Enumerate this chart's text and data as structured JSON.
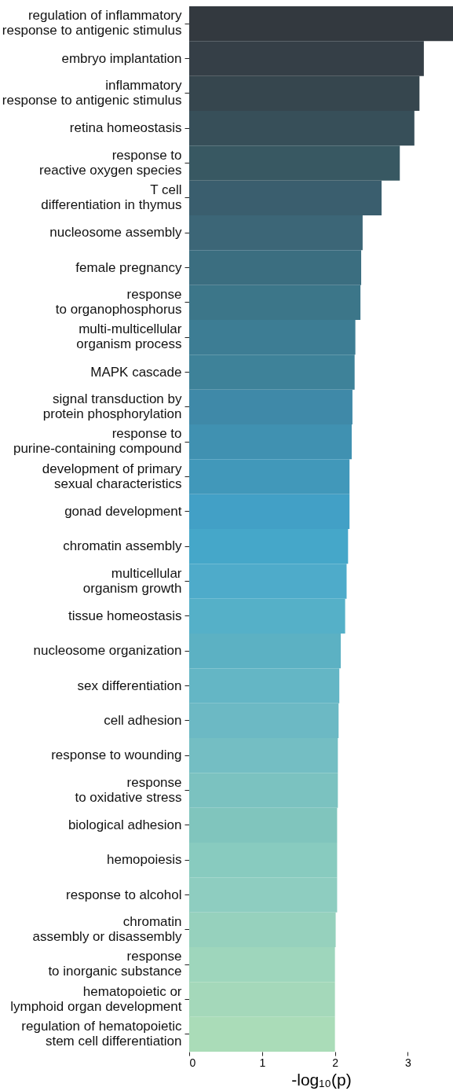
{
  "chart_data": {
    "type": "bar",
    "orientation": "horizontal",
    "xlabel": "-log₁₀(p)",
    "categories": [
      "regulation of inflammatory\nresponse to antigenic stimulus",
      "embryo implantation",
      "inflammatory\nresponse to antigenic stimulus",
      "retina homeostasis",
      "response to\nreactive oxygen species",
      "T cell\ndifferentiation in thymus",
      "nucleosome assembly",
      "female pregnancy",
      "response\nto organophosphorus",
      "multi-multicellular\norganism process",
      "MAPK cascade",
      "signal transduction by\nprotein phosphorylation",
      "response to\npurine-containing compound",
      "development of primary\nsexual characteristics",
      "gonad development",
      "chromatin assembly",
      "multicellular\norganism growth",
      "tissue homeostasis",
      "nucleosome organization",
      "sex differentiation",
      "cell adhesion",
      "response to wounding",
      "response\nto oxidative stress",
      "biological adhesion",
      "hemopoiesis",
      "response to alcohol",
      "chromatin\nassembly or disassembly",
      "response\nto inorganic substance",
      "hematopoietic or\nlymphoid organ development",
      "regulation of hematopoietic\nstem cell differentiation"
    ],
    "values": [
      3.62,
      3.22,
      3.16,
      3.09,
      2.89,
      2.64,
      2.38,
      2.36,
      2.35,
      2.28,
      2.27,
      2.24,
      2.23,
      2.2,
      2.2,
      2.18,
      2.16,
      2.14,
      2.08,
      2.06,
      2.05,
      2.04,
      2.04,
      2.03,
      2.03,
      2.03,
      2.01,
      2.0,
      2.0,
      2.0
    ],
    "colors": [
      "#33393f",
      "#353f47",
      "#36464e",
      "#374f59",
      "#385862",
      "#3a5e6e",
      "#3c6677",
      "#3b6e80",
      "#3c7689",
      "#3d7d94",
      "#3e8299",
      "#3f89a8",
      "#4091b1",
      "#4198ba",
      "#42a0c6",
      "#45a7c9",
      "#4eabca",
      "#55b0c8",
      "#5cb1c3",
      "#64b6c5",
      "#6cb9c4",
      "#74bec3",
      "#7bc2c0",
      "#80c5bd",
      "#88cbbf",
      "#8ecdc0",
      "#96d1bd",
      "#9ed6bc",
      "#a4d8ba",
      "#aadcb8"
    ],
    "xlim": [
      0,
      3.62
    ],
    "xticks": [
      0,
      1,
      2,
      3
    ],
    "grid": false
  }
}
